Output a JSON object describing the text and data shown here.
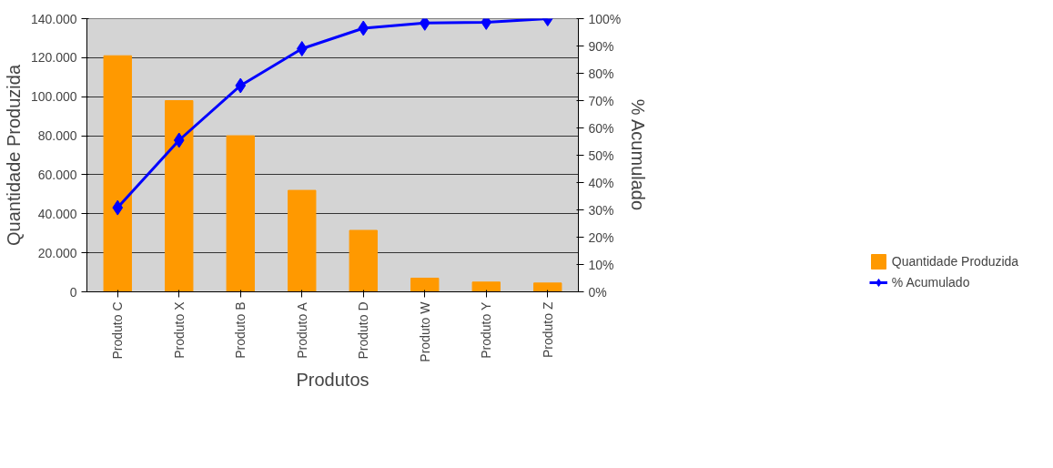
{
  "chart_data": {
    "type": "bar",
    "xlabel": "Produtos",
    "ylabel": "Quantidade Produzida",
    "y2label": "% Acumulado",
    "categories": [
      "Produto C",
      "Produto X",
      "Produto B",
      "Produto A",
      "Produto D",
      "Produto W",
      "Produto Y",
      "Produto Z"
    ],
    "series": [
      {
        "name": "Quantidade Produzida",
        "color": "#ff9900",
        "values": [
          121000,
          98000,
          80000,
          52000,
          31500,
          7000,
          5000,
          4500
        ]
      },
      {
        "name": "% Acumulado",
        "type": "line",
        "axis": "y2",
        "color": "#0000ff",
        "marker": "diamond",
        "values": [
          30.8,
          55.5,
          75.5,
          89,
          96.5,
          98.4,
          98.7,
          100
        ]
      }
    ],
    "ylim": [
      0,
      140000
    ],
    "yticks": [
      {
        "value": 0,
        "label": "0"
      },
      {
        "value": 20000,
        "label": "20.000"
      },
      {
        "value": 40000,
        "label": "40.000"
      },
      {
        "value": 60000,
        "label": "60.000"
      },
      {
        "value": 80000,
        "label": "80.000"
      },
      {
        "value": 100000,
        "label": "100.000"
      },
      {
        "value": 120000,
        "label": "120.000"
      },
      {
        "value": 140000,
        "label": "140.000"
      }
    ],
    "y2lim": [
      0,
      100
    ],
    "y2ticks": [
      {
        "value": 0,
        "label": "0%"
      },
      {
        "value": 10,
        "label": "10%"
      },
      {
        "value": 20,
        "label": "20%"
      },
      {
        "value": 30,
        "label": "30%"
      },
      {
        "value": 40,
        "label": "40%"
      },
      {
        "value": 50,
        "label": "50%"
      },
      {
        "value": 60,
        "label": "60%"
      },
      {
        "value": 70,
        "label": "70%"
      },
      {
        "value": 80,
        "label": "80%"
      },
      {
        "value": 90,
        "label": "90%"
      },
      {
        "value": 100,
        "label": "100%"
      }
    ],
    "grid": "y",
    "legend": "bottom right"
  }
}
